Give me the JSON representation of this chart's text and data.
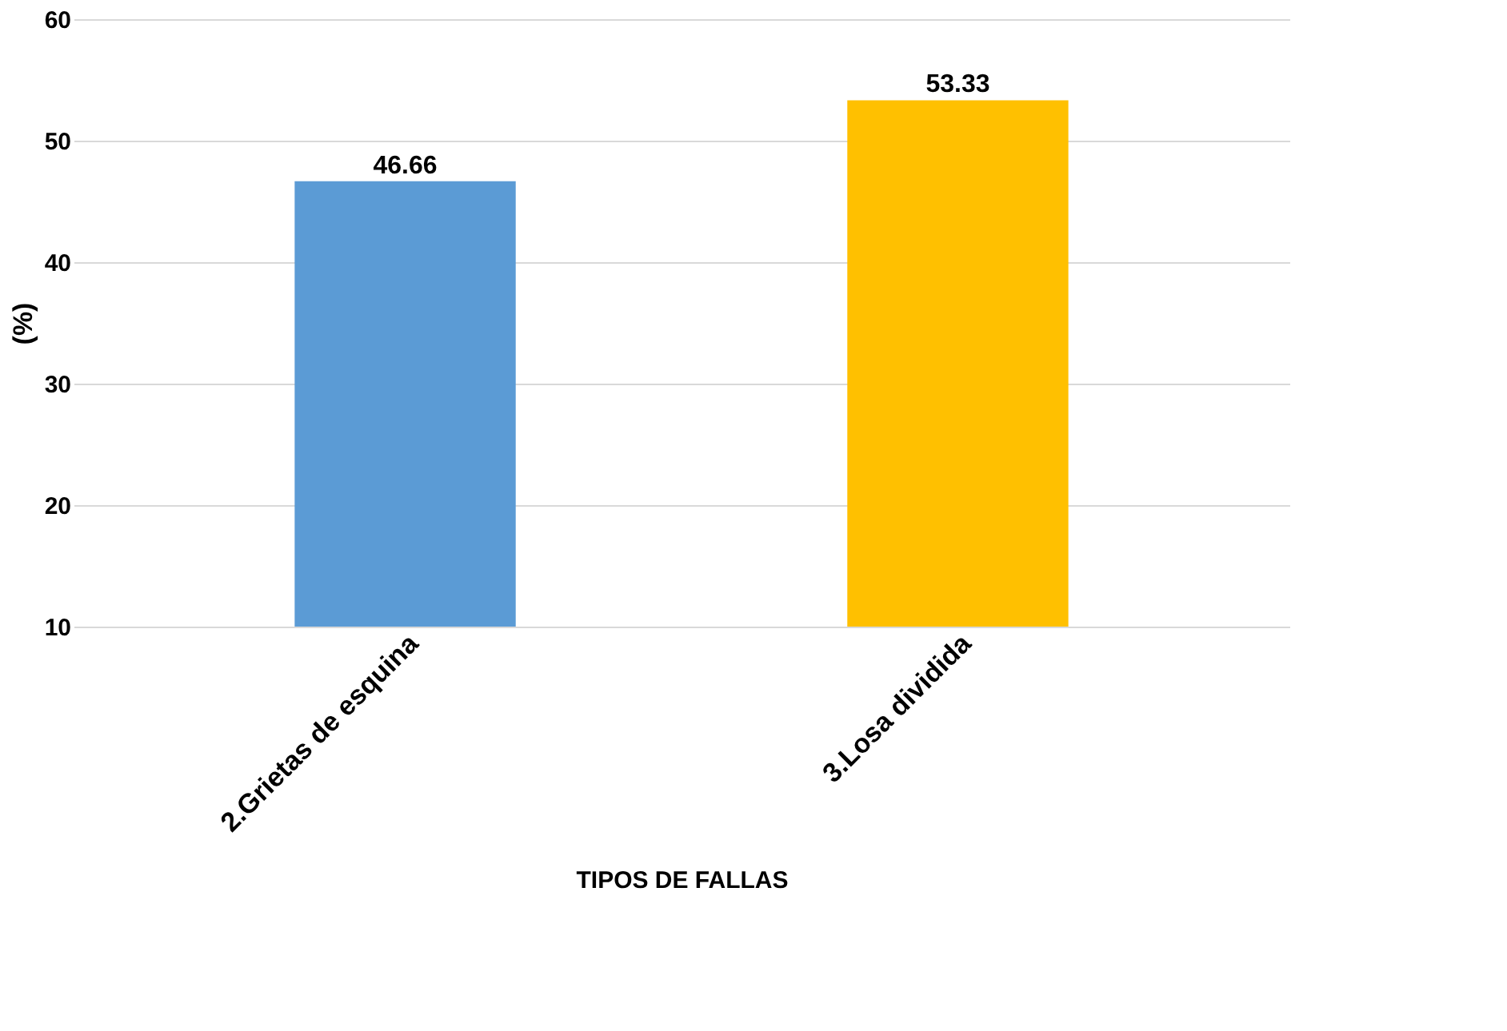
{
  "chart_data": {
    "type": "bar",
    "categories": [
      "2.Grietas de esquina",
      "3.Losa dividida"
    ],
    "values": [
      46.66,
      53.33
    ],
    "colors": [
      "#5b9bd5",
      "#ffc000"
    ],
    "xlabel": "TIPOS DE FALLAS",
    "ylabel": "(%)",
    "ylim": [
      10,
      60
    ],
    "yticks": [
      10,
      20,
      30,
      40,
      50,
      60
    ],
    "grid": "y",
    "data_labels": true
  }
}
